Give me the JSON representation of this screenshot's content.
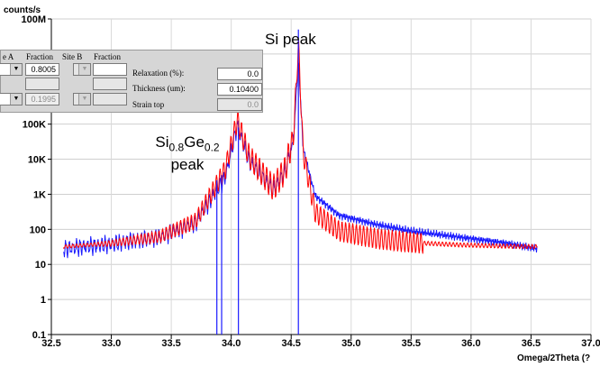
{
  "chart_data": {
    "type": "line",
    "ylabel": "counts/s",
    "xlabel": "Omega/2Theta (?",
    "y_scale": "log",
    "xlim": [
      32.5,
      37.0
    ],
    "ylim": [
      0.1,
      100000000
    ],
    "x_ticks": [
      "32.5",
      "33.0",
      "33.5",
      "34.0",
      "34.5",
      "35.0",
      "35.5",
      "36.0",
      "36.5",
      "37.0"
    ],
    "y_ticks": [
      "0.1",
      "1",
      "10",
      "100",
      "1K",
      "10K",
      "100K",
      "1M",
      "10M",
      "100M"
    ],
    "series": [
      {
        "color": "#1a1aff",
        "x": [
          32.6,
          33.0,
          33.4,
          33.7,
          33.95,
          34.05,
          34.15,
          34.35,
          34.45,
          34.52,
          34.56,
          34.6,
          34.7,
          34.9,
          35.2,
          35.5,
          35.9,
          36.3,
          36.55
        ],
        "y": [
          28,
          38,
          60,
          150,
          3000,
          90000,
          9000,
          1300,
          4500,
          40000,
          7000000,
          20000,
          900,
          250,
          140,
          90,
          60,
          40,
          28
        ]
      },
      {
        "color": "#ff0000",
        "x": [
          32.6,
          33.0,
          33.4,
          33.7,
          33.95,
          34.05,
          34.15,
          34.35,
          34.45,
          34.52,
          34.56,
          34.6,
          34.7,
          34.9,
          35.2,
          35.5,
          35.9,
          36.3,
          36.55
        ],
        "y": [
          32,
          40,
          62,
          170,
          5000,
          130000,
          12000,
          1500,
          5000,
          50000,
          20000000,
          15000,
          300,
          90,
          55,
          42,
          36,
          33,
          32
        ]
      }
    ],
    "markers": [
      {
        "x": 33.88,
        "top": 2500,
        "color": "#1a1aff"
      },
      {
        "x": 33.92,
        "top": 3500,
        "color": "#1a1aff"
      },
      {
        "x": 34.06,
        "top": 80000,
        "color": "#1a1aff"
      },
      {
        "x": 34.56,
        "top": 50000000,
        "color": "#1a1aff"
      }
    ],
    "annotations": {
      "si_peak": "Si peak",
      "sige_main": "Si",
      "sige_sub1": "0.8",
      "sige_mid": "Ge",
      "sige_sub2": "0.2",
      "sige_peak": "peak"
    }
  },
  "panel": {
    "site_a_header": "e A",
    "fraction_header_a": "Fraction",
    "site_b_header": "Site B",
    "fraction_header_b": "Fraction",
    "row1_fraction": "0.8005",
    "row3_fraction": "0.1995",
    "relaxation_label": "Relaxation (%):",
    "relaxation_value": "0.0",
    "thickness_label": "Thickness (um):",
    "thickness_value": "0.10400",
    "strain_label": "Strain top",
    "strain_value": "0.0"
  }
}
